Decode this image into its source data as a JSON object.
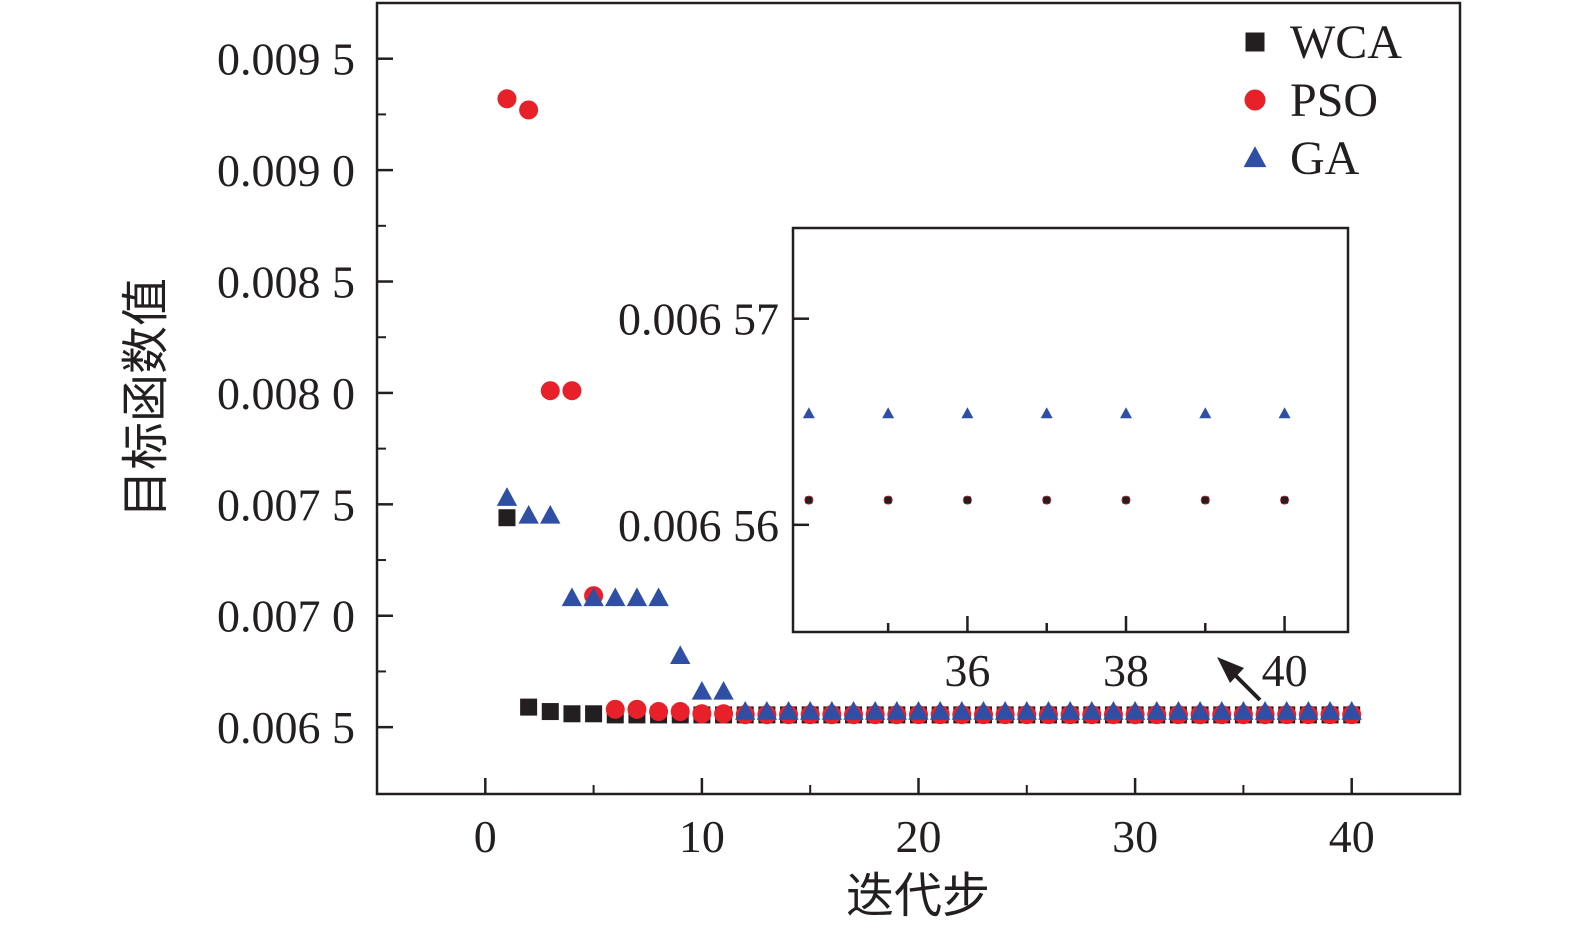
{
  "chart_data": {
    "type": "scatter",
    "title": "",
    "xlabel": "迭代步",
    "ylabel": "目标函数值",
    "xlim": [
      -5,
      45
    ],
    "ylim": [
      0.0062,
      0.00975
    ],
    "xticks": [
      0,
      10,
      20,
      30,
      40
    ],
    "xtick_labels": [
      "0",
      "10",
      "20",
      "30",
      "40"
    ],
    "yticks": [
      0.0065,
      0.007,
      0.0075,
      0.008,
      0.0085,
      0.009,
      0.0095
    ],
    "ytick_labels": [
      "0.006 5",
      "0.007 0",
      "0.007 5",
      "0.008 0",
      "0.008 5",
      "0.009 0",
      "0.009 5"
    ],
    "grid": false,
    "legend_position": "top-right",
    "series": [
      {
        "name": "WCA",
        "marker": "square",
        "color": "#231f20",
        "x": [
          1,
          2,
          3,
          4,
          5,
          6,
          7,
          8,
          9,
          10,
          11,
          12,
          13,
          14,
          15,
          16,
          17,
          18,
          19,
          20,
          21,
          22,
          23,
          24,
          25,
          26,
          27,
          28,
          29,
          30,
          31,
          32,
          33,
          34,
          35,
          36,
          37,
          38,
          39,
          40
        ],
        "y": [
          0.00744,
          0.00659,
          0.00657,
          0.00656,
          0.00656,
          0.006555,
          0.006555,
          0.006555,
          0.006555,
          0.006555,
          0.006555,
          0.006555,
          0.006555,
          0.006555,
          0.006555,
          0.006555,
          0.006555,
          0.006555,
          0.006555,
          0.006555,
          0.006555,
          0.006555,
          0.006555,
          0.006555,
          0.006555,
          0.006555,
          0.006555,
          0.006555,
          0.006555,
          0.006555,
          0.006555,
          0.006555,
          0.006555,
          0.006555,
          0.006555,
          0.006555,
          0.006555,
          0.006555,
          0.006555,
          0.006555
        ]
      },
      {
        "name": "PSO",
        "marker": "circle",
        "color": "#e8202a",
        "x": [
          1,
          2,
          3,
          4,
          5,
          6,
          7,
          8,
          9,
          10,
          11,
          12,
          13,
          14,
          15,
          16,
          17,
          18,
          19,
          20,
          21,
          22,
          23,
          24,
          25,
          26,
          27,
          28,
          29,
          30,
          31,
          32,
          33,
          34,
          35,
          36,
          37,
          38,
          39,
          40
        ],
        "y": [
          0.00932,
          0.00927,
          0.00801,
          0.00801,
          0.00709,
          0.00658,
          0.00658,
          0.00657,
          0.00657,
          0.00656,
          0.00656,
          0.006556,
          0.006556,
          0.006556,
          0.006556,
          0.006556,
          0.006556,
          0.006556,
          0.006556,
          0.006556,
          0.006556,
          0.006556,
          0.006556,
          0.006556,
          0.006556,
          0.006556,
          0.006556,
          0.006556,
          0.006556,
          0.006556,
          0.006556,
          0.006556,
          0.006556,
          0.006556,
          0.006556,
          0.006556,
          0.006556,
          0.006556,
          0.006556,
          0.006556
        ]
      },
      {
        "name": "GA",
        "marker": "triangle",
        "color": "#2e4fa3",
        "x": [
          1,
          2,
          3,
          4,
          5,
          6,
          7,
          8,
          9,
          10,
          11,
          12,
          13,
          14,
          15,
          16,
          17,
          18,
          19,
          20,
          21,
          22,
          23,
          24,
          25,
          26,
          27,
          28,
          29,
          30,
          31,
          32,
          33,
          34,
          35,
          36,
          37,
          38,
          39,
          40
        ],
        "y": [
          0.00753,
          0.00745,
          0.00745,
          0.00708,
          0.00708,
          0.00708,
          0.00708,
          0.00708,
          0.00682,
          0.00666,
          0.00666,
          0.00657,
          0.00657,
          0.00657,
          0.00657,
          0.00657,
          0.00657,
          0.00657,
          0.00657,
          0.00657,
          0.00657,
          0.00657,
          0.00657,
          0.00657,
          0.00657,
          0.00657,
          0.00657,
          0.00657,
          0.00657,
          0.00657,
          0.00657,
          0.00657,
          0.00657,
          0.00657,
          0.00657,
          0.00657,
          0.00657,
          0.00657,
          0.00657,
          0.00657
        ]
      }
    ],
    "inset": {
      "type": "scatter",
      "xlim": [
        33.8,
        40.8
      ],
      "ylim": [
        0.0065548,
        0.0065744
      ],
      "xticks": [
        35,
        36,
        37,
        38,
        39,
        40
      ],
      "xtick_labels": [
        "",
        "36",
        "",
        "38",
        "",
        "40"
      ],
      "yticks": [
        0.00656,
        0.00657
      ],
      "ytick_labels": [
        "0.006 56",
        "0.006 57"
      ],
      "series": [
        {
          "name": "PSO",
          "marker": "circle",
          "color": "#e8202a",
          "x": [
            34,
            35,
            36,
            37,
            38,
            39,
            40
          ],
          "y": [
            0.0065612,
            0.0065612,
            0.0065612,
            0.0065612,
            0.0065612,
            0.0065612,
            0.0065612
          ]
        },
        {
          "name": "WCA",
          "marker": "square",
          "color": "#231f20",
          "x": [
            34,
            35,
            36,
            37,
            38,
            39,
            40
          ],
          "y": [
            0.0065612,
            0.0065612,
            0.0065612,
            0.0065612,
            0.0065612,
            0.0065612,
            0.0065612
          ]
        },
        {
          "name": "GA",
          "marker": "triangle",
          "color": "#2e4fa3",
          "x": [
            34,
            35,
            36,
            37,
            38,
            39,
            40
          ],
          "y": [
            0.0065654,
            0.0065654,
            0.0065654,
            0.0065654,
            0.0065654,
            0.0065654,
            0.0065654
          ]
        }
      ]
    },
    "legend": [
      {
        "name": "WCA",
        "marker": "square",
        "color": "#231f20"
      },
      {
        "name": "PSO",
        "marker": "circle",
        "color": "#e8202a"
      },
      {
        "name": "GA",
        "marker": "triangle",
        "color": "#2e4fa3"
      }
    ]
  }
}
